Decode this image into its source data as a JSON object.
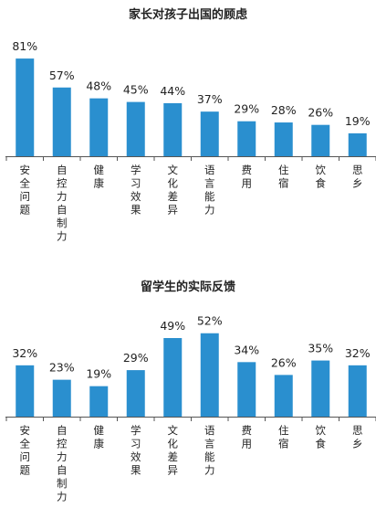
{
  "colors": {
    "bar": "#2a8fcf",
    "axis": "#555555",
    "text": "#222222"
  },
  "chart_data": [
    {
      "type": "bar",
      "title": "家长对孩子出国的顾虑",
      "categories": [
        "安全问题",
        "自控力自制力",
        "健康",
        "学习效果",
        "文化差异",
        "语言能力",
        "费用",
        "住宿",
        "饮食",
        "思乡"
      ],
      "values": [
        81,
        57,
        48,
        45,
        44,
        37,
        29,
        28,
        26,
        19
      ],
      "value_labels": [
        "81%",
        "57%",
        "48%",
        "45%",
        "44%",
        "37%",
        "29%",
        "28%",
        "26%",
        "19%"
      ],
      "unit": "%",
      "ylim": [
        0,
        100
      ],
      "grid": false,
      "legend": "none"
    },
    {
      "type": "bar",
      "title": "留学生的实际反馈",
      "categories": [
        "安全问题",
        "自控力自制力",
        "健康",
        "学习效果",
        "文化差异",
        "语言能力",
        "费用",
        "住宿",
        "饮食",
        "思乡"
      ],
      "values": [
        32,
        23,
        19,
        29,
        49,
        52,
        34,
        26,
        35,
        32
      ],
      "value_labels": [
        "32%",
        "23%",
        "19%",
        "29%",
        "49%",
        "52%",
        "34%",
        "26%",
        "35%",
        "32%"
      ],
      "unit": "%",
      "ylim": [
        0,
        100
      ],
      "grid": false,
      "legend": "none"
    }
  ]
}
